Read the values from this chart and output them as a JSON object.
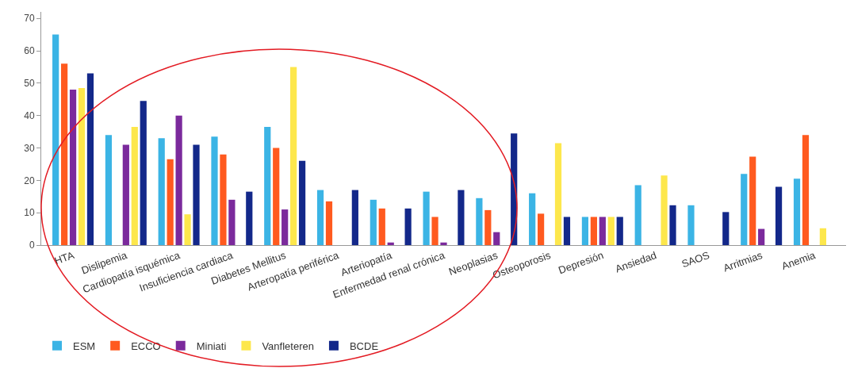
{
  "chart_data": {
    "type": "bar",
    "categories": [
      "HTA",
      "Dislipemia",
      "Cardiopatía isquémica",
      "Insuficiencia cardiaca",
      "Diabetes Mellitus",
      "Arteropatía periférica",
      "Arteriopatía",
      "Enfermedad renal crónica",
      "Neoplasias",
      "Osteoporosis",
      "Depresión",
      "Ansiedad",
      "SAOS",
      "Arritmias",
      "Anemia"
    ],
    "series": [
      {
        "name": "ESM",
        "color": "#3bb4e5",
        "values": [
          65,
          34,
          33,
          33.5,
          36.5,
          17,
          14,
          16.5,
          14.5,
          16,
          8.7,
          18.5,
          12.3,
          22,
          20.5
        ]
      },
      {
        "name": "ECCO",
        "color": "#ff5a1f",
        "values": [
          56,
          null,
          26.5,
          28,
          30,
          13.5,
          11.3,
          8.7,
          10.8,
          9.7,
          8.7,
          null,
          null,
          27.3,
          34
        ]
      },
      {
        "name": "Miniati",
        "color": "#7b2a9c",
        "values": [
          48,
          31,
          40,
          14,
          11,
          null,
          0.8,
          0.8,
          4,
          null,
          8.7,
          null,
          null,
          5,
          null
        ]
      },
      {
        "name": "Vanfleteren",
        "color": "#fde74c",
        "values": [
          48.5,
          36.5,
          9.5,
          null,
          55,
          null,
          null,
          null,
          null,
          31.5,
          8.7,
          21.5,
          null,
          null,
          5.2
        ]
      },
      {
        "name": "BCDE",
        "color": "#13288a",
        "values": [
          53,
          44.5,
          31,
          16.5,
          26,
          17,
          11.3,
          17,
          34.5,
          8.7,
          8.7,
          12.3,
          10.2,
          18,
          null
        ]
      }
    ],
    "ylim": [
      0,
      72
    ],
    "yticks": [
      0,
      10,
      20,
      30,
      40,
      50,
      60,
      70
    ],
    "grid": false,
    "legend": "bottom left"
  }
}
